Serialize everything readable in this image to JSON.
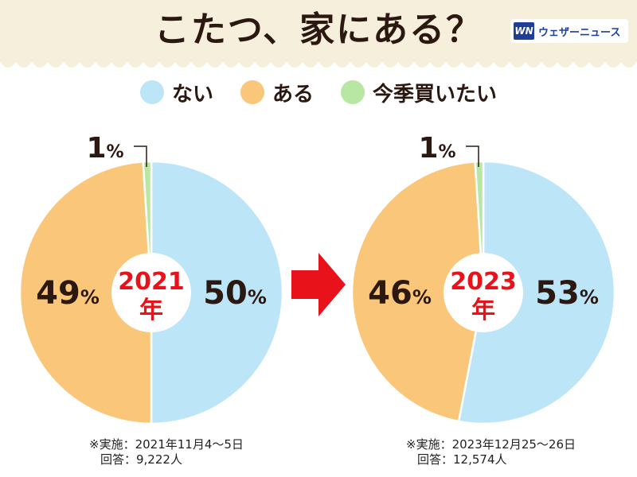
{
  "header": {
    "title": "こたつ、家にある？",
    "brand_logo": "WN",
    "brand_name": "ウェザーニュース",
    "background": "#f6efdc"
  },
  "legend": [
    {
      "label": "ない",
      "color": "#bde5f8"
    },
    {
      "label": "ある",
      "color": "#fac77a"
    },
    {
      "label": "今季買いたい",
      "color": "#b8e6a3"
    }
  ],
  "chart_data": [
    {
      "type": "pie",
      "year_label": "2021",
      "year_unit": "年",
      "slices": [
        {
          "name": "ない",
          "value": 50,
          "label": "50",
          "unit": "%",
          "color": "#bde5f8"
        },
        {
          "name": "ある",
          "value": 49,
          "label": "49",
          "unit": "%",
          "color": "#fac77a"
        },
        {
          "name": "今季買いたい",
          "value": 1,
          "label": "1",
          "unit": "%",
          "color": "#b8e6a3"
        }
      ],
      "notes": [
        "※実施：2021年11月4～5日",
        "回答：9,222人"
      ]
    },
    {
      "type": "pie",
      "year_label": "2023",
      "year_unit": "年",
      "slices": [
        {
          "name": "ない",
          "value": 53,
          "label": "53",
          "unit": "%",
          "color": "#bde5f8"
        },
        {
          "name": "ある",
          "value": 46,
          "label": "46",
          "unit": "%",
          "color": "#fac77a"
        },
        {
          "name": "今季買いたい",
          "value": 1,
          "label": "1",
          "unit": "%",
          "color": "#b8e6a3"
        }
      ],
      "notes": [
        "※実施：2023年12月25～26日",
        "回答：12,574人"
      ]
    }
  ],
  "arrow_color": "#e8121b"
}
